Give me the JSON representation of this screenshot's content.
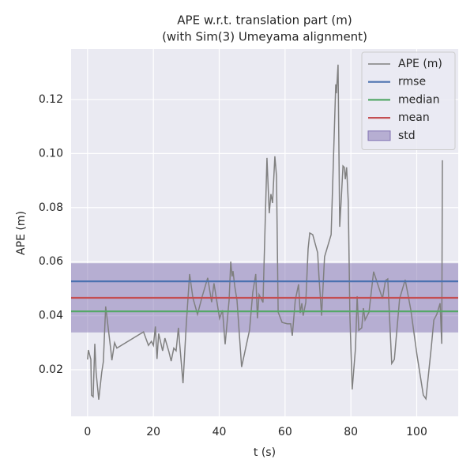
{
  "chart_data": {
    "type": "line",
    "title": "APE w.r.t. translation part (m)",
    "subtitle": "(with Sim(3) Umeyama alignment)",
    "x_label": "t (s)",
    "y_label": "APE (m)",
    "xlim": [
      -5.0,
      112.6
    ],
    "ylim": [
      0.00275,
      0.1387
    ],
    "xticks": [
      0,
      20,
      40,
      60,
      80,
      100
    ],
    "yticks": [
      0.02,
      0.04,
      0.06,
      0.08,
      {
        "value": 0.1,
        "label": "0.10"
      },
      0.12
    ],
    "grid": true,
    "legend": "upper right",
    "series": [
      {
        "name": "APE (m)",
        "color": "#808080",
        "x": [
          0,
          0.25,
          1,
          1.2,
          1.7,
          2.2,
          2.6,
          3.4,
          4.3,
          4.8,
          5.5,
          7,
          7.4,
          8.2,
          8.9,
          17,
          18.5,
          19.4,
          20,
          20.6,
          21.1,
          21.6,
          22.8,
          23.5,
          24.7,
          25.4,
          26.2,
          26.9,
          27.6,
          28.1,
          29,
          30,
          31,
          32,
          33.4,
          34.8,
          36.5,
          37.7,
          38.4,
          40.1,
          41,
          41.8,
          43,
          43.5,
          43.9,
          44.2,
          44.7,
          45.4,
          46.8,
          49.2,
          50.2,
          51.1,
          51.6,
          52.1,
          53.3,
          54.5,
          55.2,
          55.7,
          56.2,
          56.9,
          57.4,
          57.9,
          59.1,
          60.7,
          61.7,
          62.2,
          63.1,
          64.1,
          64.6,
          65.1,
          65.5,
          66.3,
          67,
          67.5,
          68.4,
          69.9,
          70.3,
          71.1,
          72,
          74,
          75.4,
          75.6,
          76.1,
          76.6,
          77.1,
          77.6,
          78,
          78.3,
          78.7,
          79.2,
          79.7,
          80.4,
          81.4,
          81.9,
          82.4,
          83.3,
          83.8,
          84.3,
          85.5,
          86.9,
          88.6,
          89.6,
          90.5,
          91.2,
          92.4,
          93.2,
          94.8,
          96.5,
          98.2,
          100.1,
          102,
          102.8,
          104.4,
          105.2,
          106.1,
          107.1,
          107.6,
          107.8
        ],
        "values": [
          0.0238,
          0.0273,
          0.0238,
          0.0106,
          0.01,
          0.0296,
          0.019,
          0.0089,
          0.019,
          0.023,
          0.0434,
          0.028,
          0.0235,
          0.03,
          0.028,
          0.034,
          0.029,
          0.0305,
          0.029,
          0.036,
          0.024,
          0.0334,
          0.027,
          0.0317,
          0.0267,
          0.0232,
          0.028,
          0.027,
          0.0355,
          0.028,
          0.015,
          0.037,
          0.0554,
          0.0466,
          0.0405,
          0.047,
          0.054,
          0.045,
          0.052,
          0.039,
          0.042,
          0.0294,
          0.0457,
          0.06,
          0.0545,
          0.0565,
          0.051,
          0.0457,
          0.021,
          0.0346,
          0.0487,
          0.0554,
          0.039,
          0.0478,
          0.0449,
          0.0984,
          0.0779,
          0.085,
          0.0817,
          0.099,
          0.0917,
          0.0413,
          0.0375,
          0.037,
          0.037,
          0.0326,
          0.0457,
          0.0516,
          0.041,
          0.0446,
          0.04,
          0.0449,
          0.0647,
          0.0706,
          0.07,
          0.0633,
          0.0545,
          0.04,
          0.0618,
          0.07,
          0.1256,
          0.1223,
          0.1329,
          0.0729,
          0.0837,
          0.0954,
          0.0949,
          0.0905,
          0.0949,
          0.0823,
          0.04,
          0.0127,
          0.028,
          0.0472,
          0.0346,
          0.0355,
          0.0428,
          0.0384,
          0.0413,
          0.0563,
          0.05,
          0.0463,
          0.053,
          0.0536,
          0.0223,
          0.0238,
          0.0463,
          0.0533,
          0.0422,
          0.0253,
          0.0106,
          0.0092,
          0.028,
          0.0384,
          0.0405,
          0.0446,
          0.0296,
          0.0975
        ]
      },
      {
        "name": "rmse",
        "color": "#4c72b0",
        "value": 0.0527
      },
      {
        "name": "median",
        "color": "#55a868",
        "value": 0.0416
      },
      {
        "name": "mean",
        "color": "#c44e52",
        "value": 0.0466
      },
      {
        "name": "std",
        "color": "#8172b2",
        "value": 0.0128
      }
    ]
  }
}
